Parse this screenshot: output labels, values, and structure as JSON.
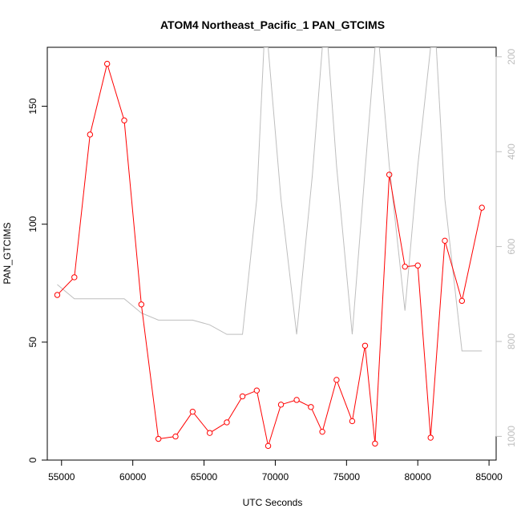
{
  "chart_data": {
    "type": "line",
    "title": "ATOM4 Northeast_Pacific_1 PAN_GTCIMS",
    "xlabel": "UTC Seconds",
    "ylabel": "PAN_GTCIMS",
    "xlim": [
      54000,
      85500
    ],
    "ylim": [
      0,
      175
    ],
    "xticks": [
      55000,
      60000,
      65000,
      70000,
      75000,
      80000,
      85000
    ],
    "yticks": [
      0,
      50,
      100,
      150
    ],
    "y2lim": [
      1050,
      180
    ],
    "y2ticks": [
      200,
      400,
      600,
      800,
      1000
    ],
    "grid": false,
    "series": [
      {
        "color": "#ff0000",
        "marker": "open-circle",
        "axis": "left",
        "points": [
          [
            54700,
            70
          ],
          [
            55900,
            77.5
          ],
          [
            57000,
            138
          ],
          [
            58200,
            168
          ],
          [
            59400,
            144
          ],
          [
            60600,
            66
          ],
          [
            61800,
            9
          ],
          [
            63000,
            10
          ],
          [
            64200,
            20.5
          ],
          [
            65400,
            11.5
          ],
          [
            66600,
            16
          ],
          [
            67700,
            27
          ],
          [
            68700,
            29.5
          ],
          [
            69500,
            6
          ],
          [
            70400,
            23.5
          ],
          [
            71500,
            25.5
          ],
          [
            72500,
            22.5
          ],
          [
            73300,
            12
          ],
          [
            74300,
            34
          ],
          [
            75400,
            16.5
          ],
          [
            76300,
            48.5
          ],
          [
            77000,
            7
          ],
          [
            78000,
            121
          ],
          [
            79100,
            82
          ],
          [
            80000,
            82.5
          ],
          [
            80900,
            9.5
          ],
          [
            81900,
            93
          ],
          [
            83100,
            67.5
          ],
          [
            84500,
            107
          ]
        ]
      },
      {
        "color": "#bebebe",
        "marker": "none",
        "axis": "right",
        "points": [
          [
            54700,
            680
          ],
          [
            55900,
            710
          ],
          [
            57000,
            710
          ],
          [
            58200,
            710
          ],
          [
            59400,
            710
          ],
          [
            60600,
            740
          ],
          [
            61800,
            755
          ],
          [
            63000,
            755
          ],
          [
            64200,
            755
          ],
          [
            65400,
            765
          ],
          [
            66600,
            785
          ],
          [
            67700,
            785
          ],
          [
            68700,
            500
          ],
          [
            69200,
            180
          ],
          [
            69500,
            180
          ],
          [
            70400,
            500
          ],
          [
            71500,
            785
          ],
          [
            72600,
            450
          ],
          [
            73300,
            180
          ],
          [
            73700,
            180
          ],
          [
            74300,
            430
          ],
          [
            75400,
            785
          ],
          [
            76300,
            440
          ],
          [
            77000,
            180
          ],
          [
            77300,
            180
          ],
          [
            78000,
            430
          ],
          [
            79100,
            735
          ],
          [
            80000,
            430
          ],
          [
            80900,
            180
          ],
          [
            81300,
            180
          ],
          [
            81900,
            500
          ],
          [
            83100,
            820
          ],
          [
            84500,
            820
          ]
        ]
      }
    ]
  }
}
